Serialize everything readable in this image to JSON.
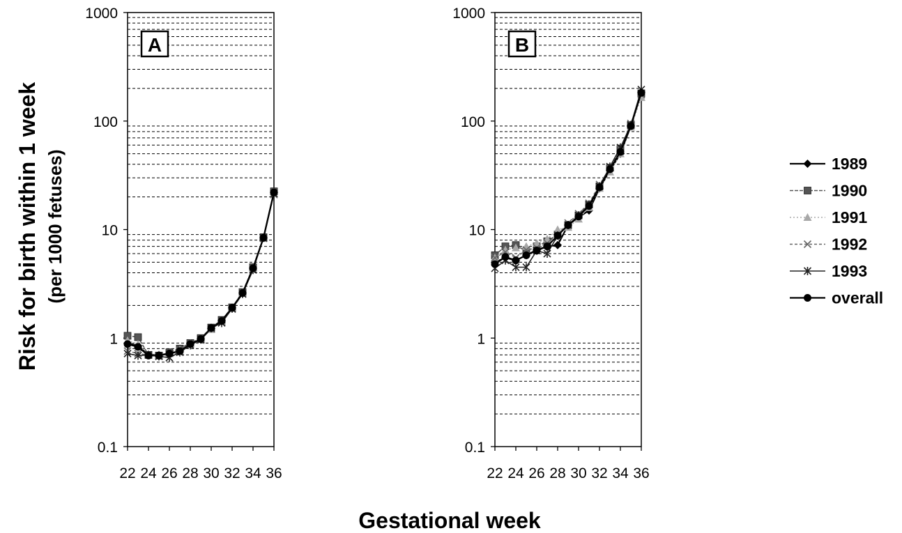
{
  "chart_data": {
    "type": "line",
    "y_scale": "log",
    "ylim": [
      0.1,
      1000
    ],
    "yticks": [
      0.1,
      1,
      10,
      100,
      1000
    ],
    "ytick_labels": [
      "0.1",
      "1",
      "10",
      "100",
      "1000"
    ],
    "xlim": [
      22,
      36
    ],
    "xticks": [
      22,
      24,
      26,
      28,
      30,
      32,
      34,
      36
    ],
    "xtick_labels": [
      "22",
      "24",
      "26",
      "28",
      "30",
      "32",
      "34",
      "36"
    ],
    "grid": "horizontal dashed at minor log ticks",
    "ylabel": "Risk for birth within 1 week",
    "ylabel_sub": "(per 1000 fetuses)",
    "xlabel": "Gestational week",
    "legend_position": "right",
    "colors": {
      "1989": "#000000",
      "1990": "#555555",
      "1991": "#a8a8a8",
      "1992": "#666666",
      "1993": "#222222",
      "overall": "#000000"
    },
    "markers": {
      "1989": "diamond",
      "1990": "square",
      "1991": "triangle",
      "1992": "x",
      "1993": "asterisk",
      "overall": "circle"
    },
    "panels": [
      {
        "label": "A",
        "x": [
          22,
          23,
          24,
          25,
          26,
          27,
          28,
          29,
          30,
          31,
          32,
          33,
          34,
          35,
          36
        ],
        "series": [
          {
            "name": "1989",
            "values": [
              0.9,
              0.85,
              0.7,
              0.7,
              0.72,
              0.76,
              0.88,
              0.98,
              1.22,
              1.45,
              1.9,
              2.6,
              4.4,
              8.4,
              22
            ]
          },
          {
            "name": "1990",
            "values": [
              1.05,
              1.02,
              0.7,
              0.69,
              0.74,
              0.8,
              0.9,
              1.0,
              1.25,
              1.47,
              1.92,
              2.65,
              4.5,
              8.5,
              22.5
            ]
          },
          {
            "name": "1991",
            "values": [
              0.95,
              0.88,
              0.7,
              0.7,
              0.72,
              0.78,
              0.89,
              0.97,
              1.2,
              1.42,
              1.88,
              2.6,
              4.35,
              8.3,
              21.5
            ]
          },
          {
            "name": "1992",
            "values": [
              0.76,
              0.72,
              0.7,
              0.68,
              0.66,
              0.76,
              0.87,
              0.96,
              1.22,
              1.4,
              1.85,
              2.55,
              4.3,
              8.3,
              21
            ]
          },
          {
            "name": "1993",
            "values": [
              0.72,
              0.69,
              0.7,
              0.68,
              0.66,
              0.74,
              0.86,
              0.97,
              1.24,
              1.38,
              1.87,
              2.55,
              4.25,
              8.4,
              21.5
            ]
          },
          {
            "name": "overall",
            "values": [
              0.88,
              0.83,
              0.69,
              0.69,
              0.72,
              0.76,
              0.88,
              0.98,
              1.24,
              1.44,
              1.9,
              2.6,
              4.4,
              8.4,
              22
            ]
          }
        ]
      },
      {
        "label": "B",
        "x": [
          22,
          23,
          24,
          25,
          26,
          27,
          28,
          29,
          30,
          31,
          32,
          33,
          34,
          35,
          36
        ],
        "series": [
          {
            "name": "1989",
            "values": [
              5.0,
              5.5,
              5.2,
              5.8,
              6.5,
              7.0,
              7.2,
              11.0,
              13.0,
              15.0,
              24.0,
              35.0,
              50.0,
              90.0,
              185.0
            ]
          },
          {
            "name": "1990",
            "values": [
              5.8,
              7.0,
              7.2,
              6.3,
              7.0,
              7.8,
              9.0,
              11.0,
              13.5,
              17.0,
              25.0,
              37.0,
              55.0,
              92.0,
              180.0
            ]
          },
          {
            "name": "1991",
            "values": [
              5.5,
              6.5,
              6.8,
              7.0,
              7.5,
              8.2,
              10.0,
              10.5,
              12.5,
              16.0,
              24.0,
              34.0,
              50.0,
              88.0,
              165.0
            ]
          },
          {
            "name": "1992",
            "values": [
              5.5,
              6.2,
              5.5,
              6.5,
              6.8,
              7.5,
              9.0,
              11.5,
              14.0,
              17.5,
              26.0,
              37.0,
              55.0,
              95.0,
              175.0
            ]
          },
          {
            "name": "1993",
            "values": [
              4.4,
              5.2,
              4.5,
              4.5,
              6.4,
              6.0,
              8.8,
              11.0,
              13.5,
              17.0,
              25.0,
              38.0,
              57.0,
              92.0,
              195.0
            ]
          },
          {
            "name": "overall",
            "values": [
              4.8,
              5.6,
              5.2,
              5.8,
              6.4,
              7.0,
              8.8,
              11.0,
              13.2,
              16.5,
              24.5,
              36.0,
              52.0,
              90.0,
              182.0
            ]
          }
        ]
      }
    ]
  }
}
